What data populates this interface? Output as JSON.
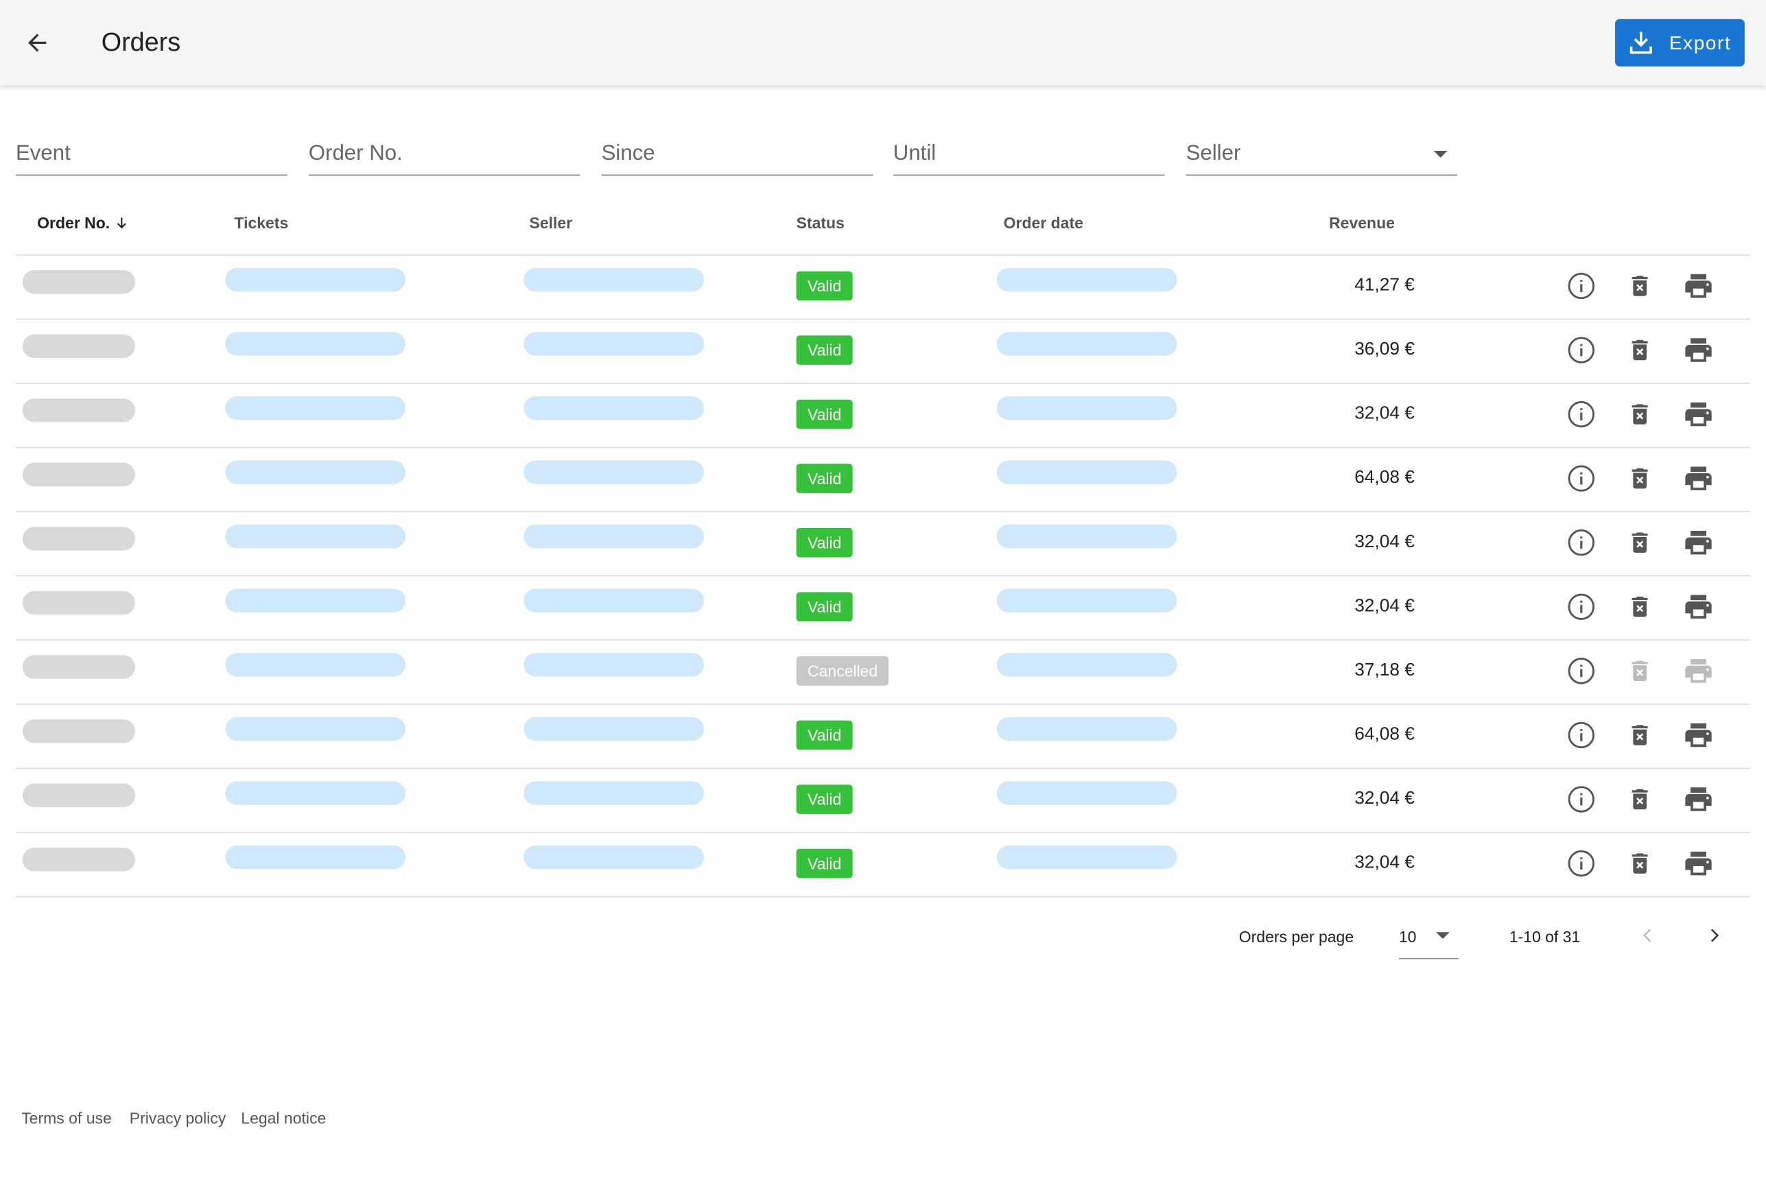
{
  "header": {
    "title": "Orders",
    "export": "Export"
  },
  "filters": [
    "Event",
    "Order No.",
    "Since",
    "Until",
    "Seller"
  ],
  "table": {
    "columns": [
      "Order No.",
      "Tickets",
      "Seller",
      "Status",
      "Order date",
      "Revenue"
    ],
    "rows": [
      {
        "status": "Valid",
        "revenue": "41,27 €"
      },
      {
        "status": "Valid",
        "revenue": "36,09 €"
      },
      {
        "status": "Valid",
        "revenue": "32,04 €"
      },
      {
        "status": "Valid",
        "revenue": "64,08 €"
      },
      {
        "status": "Valid",
        "revenue": "32,04 €"
      },
      {
        "status": "Valid",
        "revenue": "32,04 €"
      },
      {
        "status": "Cancelled",
        "revenue": "37,18 €"
      },
      {
        "status": "Valid",
        "revenue": "64,08 €"
      },
      {
        "status": "Valid",
        "revenue": "32,04 €"
      },
      {
        "status": "Valid",
        "revenue": "32,04 €"
      }
    ]
  },
  "pagination": {
    "label": "Orders per page",
    "per_page": "10",
    "range": "1-10 of 31"
  },
  "footer": [
    "Terms of use",
    "Privacy policy",
    "Legal notice"
  ]
}
